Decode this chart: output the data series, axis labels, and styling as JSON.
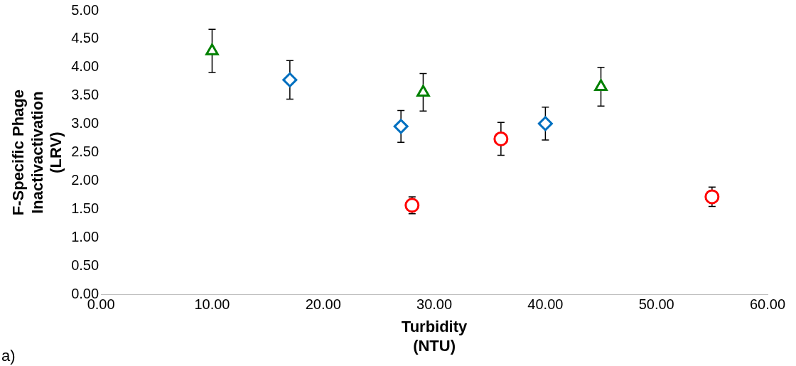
{
  "chart_data": {
    "type": "scatter",
    "xlabel": "Turbidity\n(NTU)",
    "ylabel": "F-Specific Phage\nInactivactivation\n(LRV)",
    "xlim": [
      0,
      60
    ],
    "ylim": [
      0,
      5
    ],
    "xticks": [
      {
        "value": 0,
        "label": "0.00"
      },
      {
        "value": 10,
        "label": "10.00"
      },
      {
        "value": 20,
        "label": "20.00"
      },
      {
        "value": 30,
        "label": "30.00"
      },
      {
        "value": 40,
        "label": "40.00"
      },
      {
        "value": 50,
        "label": "50.00"
      },
      {
        "value": 60,
        "label": "60.00"
      }
    ],
    "yticks": [
      {
        "value": 0,
        "label": "0.00"
      },
      {
        "value": 0.5,
        "label": "0.50"
      },
      {
        "value": 1,
        "label": "1.00"
      },
      {
        "value": 1.5,
        "label": "1.50"
      },
      {
        "value": 2,
        "label": "2.00"
      },
      {
        "value": 2.5,
        "label": "2.50"
      },
      {
        "value": 3,
        "label": "3.00"
      },
      {
        "value": 3.5,
        "label": "3.50"
      },
      {
        "value": 4,
        "label": "4.00"
      },
      {
        "value": 4.5,
        "label": "4.50"
      },
      {
        "value": 5,
        "label": "5.00"
      }
    ],
    "grid": false,
    "legend": false,
    "annotations": [
      "a)"
    ],
    "series": [
      {
        "color": "#008000",
        "marker": "triangle",
        "x": [
          10,
          29,
          45
        ],
        "values": [
          4.29,
          3.56,
          3.66
        ],
        "errors": [
          0.38,
          0.33,
          0.34
        ]
      },
      {
        "color": "#0070c0",
        "marker": "diamond",
        "x": [
          17,
          27,
          40
        ],
        "values": [
          3.78,
          2.96,
          3.01
        ],
        "errors": [
          0.34,
          0.28,
          0.29
        ]
      },
      {
        "color": "#ff0000",
        "marker": "circle",
        "x": [
          28,
          36,
          55
        ],
        "values": [
          1.57,
          2.74,
          1.72
        ],
        "errors": [
          0.15,
          0.29,
          0.17
        ]
      }
    ]
  }
}
